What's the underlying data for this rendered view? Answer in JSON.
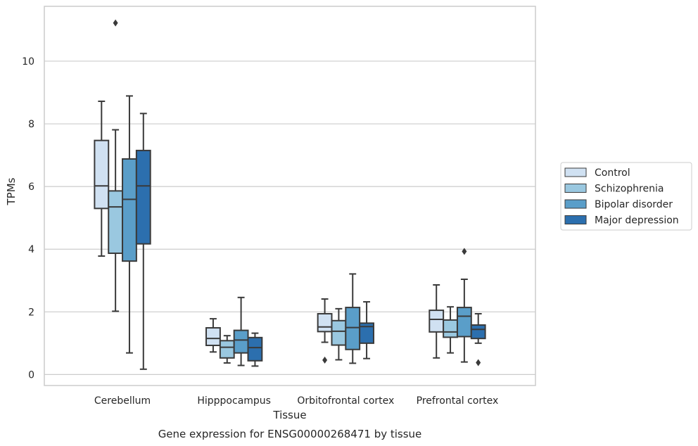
{
  "caption": "Gene expression for ENSG00000268471 by tissue",
  "chart_data": {
    "type": "box",
    "title": "",
    "xlabel": "Tissue",
    "ylabel": "TPMs",
    "ylim": [
      -0.35,
      11.75
    ],
    "yticks": [
      0,
      2,
      4,
      6,
      8,
      10
    ],
    "grid": "horizontal",
    "legend_position": "right",
    "categories": [
      "Cerebellum",
      "Hipppocampus",
      "Orbitofrontal cortex",
      "Prefrontal cortex"
    ],
    "series": [
      {
        "name": "Control",
        "color": "#d0e1f2",
        "boxes": [
          {
            "whisker_low": 3.78,
            "q1": 5.3,
            "median": 6.02,
            "q3": 7.47,
            "whisker_high": 8.72,
            "outliers": []
          },
          {
            "whisker_low": 0.72,
            "q1": 0.93,
            "median": 1.15,
            "q3": 1.49,
            "whisker_high": 1.78,
            "outliers": []
          },
          {
            "whisker_low": 1.03,
            "q1": 1.37,
            "median": 1.52,
            "q3": 1.94,
            "whisker_high": 2.41,
            "outliers": [
              0.46
            ]
          },
          {
            "whisker_low": 0.53,
            "q1": 1.36,
            "median": 1.76,
            "q3": 2.05,
            "whisker_high": 2.86,
            "outliers": []
          }
        ]
      },
      {
        "name": "Schizophrenia",
        "color": "#9ac8e0",
        "boxes": [
          {
            "whisker_low": 2.02,
            "q1": 3.87,
            "median": 5.35,
            "q3": 5.86,
            "whisker_high": 7.81,
            "outliers": [
              11.22
            ]
          },
          {
            "whisker_low": 0.37,
            "q1": 0.53,
            "median": 0.87,
            "q3": 1.08,
            "whisker_high": 1.24,
            "outliers": []
          },
          {
            "whisker_low": 0.47,
            "q1": 0.94,
            "median": 1.38,
            "q3": 1.72,
            "whisker_high": 2.1,
            "outliers": []
          },
          {
            "whisker_low": 0.69,
            "q1": 1.19,
            "median": 1.36,
            "q3": 1.74,
            "whisker_high": 2.16,
            "outliers": []
          }
        ]
      },
      {
        "name": "Bipolar disorder",
        "color": "#5a9ec9",
        "boxes": [
          {
            "whisker_low": 0.69,
            "q1": 3.62,
            "median": 5.59,
            "q3": 6.88,
            "whisker_high": 8.89,
            "outliers": []
          },
          {
            "whisker_low": 0.29,
            "q1": 0.69,
            "median": 1.1,
            "q3": 1.41,
            "whisker_high": 2.46,
            "outliers": []
          },
          {
            "whisker_low": 0.36,
            "q1": 0.8,
            "median": 1.5,
            "q3": 2.14,
            "whisker_high": 3.21,
            "outliers": []
          },
          {
            "whisker_low": 0.4,
            "q1": 1.21,
            "median": 1.86,
            "q3": 2.14,
            "whisker_high": 3.04,
            "outliers": [
              3.93
            ]
          }
        ]
      },
      {
        "name": "Major depression",
        "color": "#2c6fae",
        "boxes": [
          {
            "whisker_low": 0.17,
            "q1": 4.17,
            "median": 6.02,
            "q3": 7.15,
            "whisker_high": 8.33,
            "outliers": []
          },
          {
            "whisker_low": 0.27,
            "q1": 0.44,
            "median": 0.86,
            "q3": 1.18,
            "whisker_high": 1.32,
            "outliers": []
          },
          {
            "whisker_low": 0.51,
            "q1": 1.0,
            "median": 1.53,
            "q3": 1.64,
            "whisker_high": 2.32,
            "outliers": []
          },
          {
            "whisker_low": 1.0,
            "q1": 1.15,
            "median": 1.44,
            "q3": 1.58,
            "whisker_high": 1.94,
            "outliers": [
              0.38
            ]
          }
        ]
      }
    ]
  }
}
